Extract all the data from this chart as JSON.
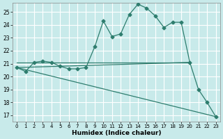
{
  "xlabel": "Humidex (Indice chaleur)",
  "bg_color": "#c8eaea",
  "grid_color": "#ffffff",
  "line_color": "#2e7d6e",
  "xlim": [
    -0.5,
    23.5
  ],
  "ylim": [
    16.5,
    25.7
  ],
  "yticks": [
    17,
    18,
    19,
    20,
    21,
    22,
    23,
    24,
    25
  ],
  "xticks": [
    0,
    1,
    2,
    3,
    4,
    5,
    6,
    7,
    8,
    9,
    10,
    11,
    12,
    13,
    14,
    15,
    16,
    17,
    18,
    19,
    20,
    21,
    22,
    23
  ],
  "series1_x": [
    0,
    1,
    2,
    3,
    4,
    5,
    6,
    7,
    8,
    9,
    10,
    11,
    12,
    13,
    14,
    15,
    16,
    17,
    18,
    19,
    20,
    21,
    22,
    23
  ],
  "series1_y": [
    20.7,
    20.4,
    21.1,
    21.2,
    21.1,
    20.8,
    20.6,
    20.6,
    20.7,
    22.3,
    24.3,
    23.1,
    23.3,
    24.8,
    25.6,
    25.3,
    24.7,
    23.8,
    24.2,
    24.2,
    21.1,
    19.0,
    18.0,
    16.9
  ],
  "series2_x": [
    0,
    20
  ],
  "series2_y": [
    20.7,
    21.1
  ],
  "series3_x": [
    0,
    23
  ],
  "series3_y": [
    20.7,
    16.9
  ],
  "hline_x": [
    0,
    20
  ],
  "hline_y": [
    21.1,
    21.1
  ]
}
